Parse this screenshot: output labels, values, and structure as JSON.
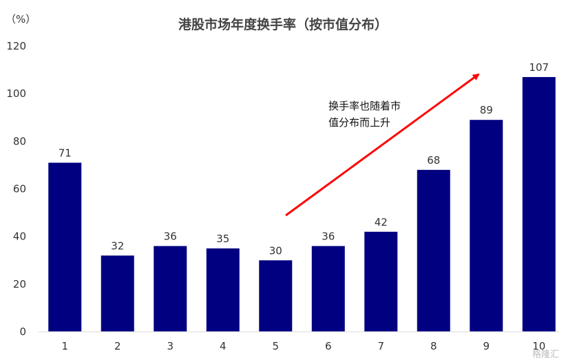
{
  "chart_data": {
    "type": "bar",
    "title": "港股市场年度换手率（按市值分布）",
    "unit_label": "（%）",
    "categories": [
      "1",
      "2",
      "3",
      "4",
      "5",
      "6",
      "7",
      "8",
      "9",
      "10"
    ],
    "values": [
      71,
      32,
      36,
      35,
      30,
      36,
      42,
      68,
      89,
      107
    ],
    "yticks": [
      0,
      20,
      40,
      60,
      80,
      100,
      120
    ],
    "ylim": [
      0,
      120
    ],
    "bar_color": "#000080",
    "grid": false,
    "data_labels": true,
    "annotation": {
      "lines": [
        "换手率也随着市",
        "值分布而上升"
      ],
      "arrow_color": "#ff0000"
    }
  },
  "watermark": "格隆汇"
}
